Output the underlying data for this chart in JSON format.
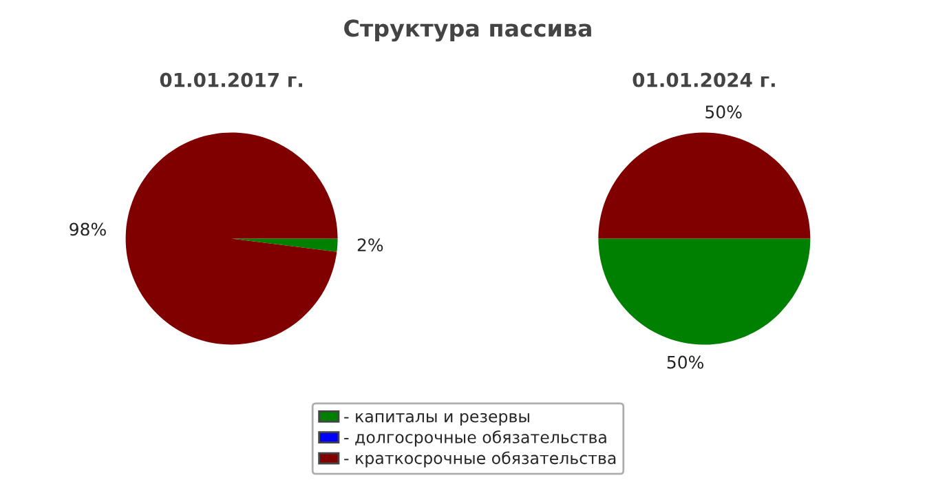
{
  "chart_data": [
    {
      "type": "pie",
      "title": "Структура пассива",
      "subtitle": "01.01.2017 г.",
      "categories": [
        "- капиталы и резервы",
        "- долгосрочные обязательства",
        "- краткосрочные обязательства"
      ],
      "values": [
        2,
        0,
        98
      ],
      "colors": [
        "#008000",
        "#0000ff",
        "#800000"
      ],
      "value_labels": [
        "2%",
        null,
        "98%"
      ],
      "legend": "bottom"
    },
    {
      "type": "pie",
      "subtitle": "01.01.2024 г.",
      "categories": [
        null,
        null,
        null
      ],
      "values": [
        50,
        0,
        50
      ],
      "colors": [
        "#008000",
        "#0000ff",
        "#800000"
      ],
      "value_labels": [
        "50%",
        null,
        "50%"
      ]
    }
  ]
}
